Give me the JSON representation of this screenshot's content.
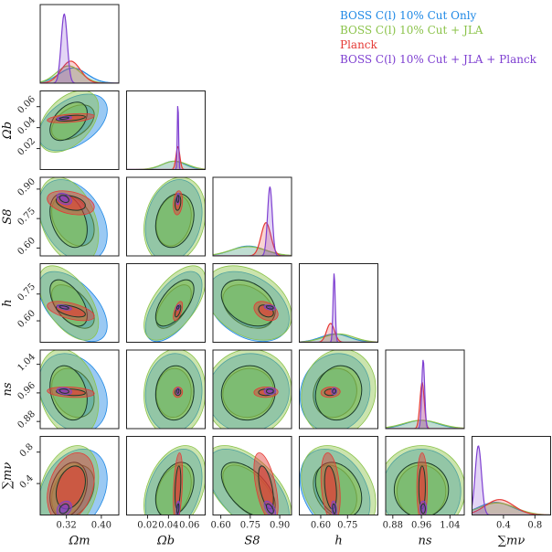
{
  "chart_data": {
    "type": "corner",
    "title": "",
    "parameters": [
      {
        "key": "om",
        "label": "Ωm",
        "range": [
          0.26,
          0.44
        ],
        "ticks": [
          0.32,
          0.4
        ]
      },
      {
        "key": "ob",
        "label": "Ωb",
        "range": [
          0.0,
          0.075
        ],
        "ticks": [
          0.02,
          0.04,
          0.06
        ]
      },
      {
        "key": "s8",
        "label": "S8",
        "range": [
          0.56,
          0.96
        ],
        "ticks": [
          0.6,
          0.75,
          0.9
        ]
      },
      {
        "key": "h",
        "label": "h",
        "range": [
          0.48,
          0.92
        ],
        "ticks": [
          0.6,
          0.75
        ]
      },
      {
        "key": "ns",
        "label": "ns",
        "range": [
          0.86,
          1.08
        ],
        "ticks": [
          0.88,
          0.96,
          1.04
        ]
      },
      {
        "key": "mnu",
        "label": "∑mν",
        "range": [
          0.0,
          1.0
        ],
        "ticks": [
          0.4,
          0.8
        ]
      }
    ],
    "tick_labels": {
      "om": [
        "0.32",
        "0.40"
      ],
      "ob": [
        "0.02",
        "0.04",
        "0.06"
      ],
      "s8": [
        "0.60",
        "0.75",
        "0.90"
      ],
      "h": [
        "0.60",
        "0.75"
      ],
      "ns": [
        "0.88",
        "0.96",
        "1.04"
      ],
      "mnu": [
        "0.4",
        "0.8"
      ]
    },
    "series": [
      {
        "name": "BOSS C(l) 10% Cut Only",
        "color": "#1e88e5",
        "mean": {
          "om": 0.335,
          "ob": 0.045,
          "s8": 0.74,
          "h": 0.68,
          "ns": 0.96,
          "mnu": 0.3
        },
        "sigma": {
          "om": 0.032,
          "ob": 0.011,
          "s8": 0.085,
          "h": 0.08,
          "ns": 0.045,
          "mnu": 0.22
        }
      },
      {
        "name": "BOSS C(l) 10% Cut + JLA",
        "color": "#8bc34a",
        "mean": {
          "om": 0.325,
          "ob": 0.046,
          "s8": 0.74,
          "h": 0.7,
          "ns": 0.96,
          "mnu": 0.32
        },
        "sigma": {
          "om": 0.028,
          "ob": 0.012,
          "s8": 0.09,
          "h": 0.085,
          "ns": 0.05,
          "mnu": 0.23
        }
      },
      {
        "name": "Planck",
        "color": "#e53935",
        "mean": {
          "om": 0.33,
          "ob": 0.049,
          "s8": 0.83,
          "h": 0.655,
          "ns": 0.962,
          "mnu": 0.35
        },
        "sigma": {
          "om": 0.022,
          "ob": 0.0018,
          "s8": 0.025,
          "h": 0.022,
          "ns": 0.006,
          "mnu": 0.18
        }
      },
      {
        "name": "BOSS C(l) 10% Cut + JLA + Planck",
        "color": "#7e3fd1",
        "mean": {
          "om": 0.315,
          "ob": 0.049,
          "s8": 0.85,
          "h": 0.675,
          "ns": 0.965,
          "mnu": 0.08
        },
        "sigma": {
          "om": 0.007,
          "ob": 0.0006,
          "s8": 0.012,
          "h": 0.006,
          "ns": 0.004,
          "mnu": 0.04
        }
      }
    ],
    "legend_position": "top-right"
  }
}
